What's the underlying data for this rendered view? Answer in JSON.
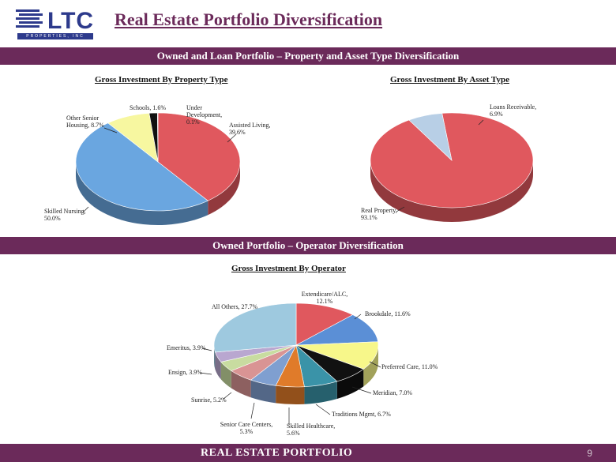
{
  "header": {
    "logo_text": "LTC",
    "logo_sub": "PROPERTIES, INC",
    "title": "Real Estate Portfolio Diversification"
  },
  "section1": {
    "band": "Owned and Loan Portfolio – Property and Asset Type Diversification"
  },
  "section2": {
    "band": "Owned Portfolio – Operator Diversification"
  },
  "footer": {
    "label": "REAL ESTATE PORTFOLIO",
    "page": "9"
  },
  "chart_data": [
    {
      "type": "pie",
      "title": "Gross Investment By Property Type",
      "slices": [
        {
          "label": "Assisted Living, 39.6%",
          "value": 39.6,
          "color": "#e0585e"
        },
        {
          "label": "Skilled Nursing, 50.0%",
          "value": 50.0,
          "color": "#6aa6e0"
        },
        {
          "label": "Other Senior Housing, 8.7%",
          "value": 8.7,
          "color": "#f7f7a0"
        },
        {
          "label": "Schools, 1.6%",
          "value": 1.6,
          "color": "#111111"
        },
        {
          "label": "Under Development, 0.1%",
          "value": 0.1,
          "color": "#888888"
        }
      ]
    },
    {
      "type": "pie",
      "title": "Gross Investment By Asset Type",
      "slices": [
        {
          "label": "Real Property, 93.1%",
          "value": 93.1,
          "color": "#e0585e"
        },
        {
          "label": "Loans Receivable, 6.9%",
          "value": 6.9,
          "color": "#b8cfe6"
        }
      ]
    },
    {
      "type": "pie",
      "title": "Gross Investment By Operator",
      "slices": [
        {
          "label": "Extendicare/ALC, 12.1%",
          "value": 12.1,
          "color": "#e0585e"
        },
        {
          "label": "Brookdale, 11.6%",
          "value": 11.6,
          "color": "#5b8fd6"
        },
        {
          "label": "Preferred Care, 11.0%",
          "value": 11.0,
          "color": "#f7f78a"
        },
        {
          "label": "Meridian, 7.0%",
          "value": 7.0,
          "color": "#111111"
        },
        {
          "label": "Traditions Mgmt, 6.7%",
          "value": 6.7,
          "color": "#3a93a8"
        },
        {
          "label": "Skilled Healthcare, 5.6%",
          "value": 5.6,
          "color": "#e07b2a"
        },
        {
          "label": "Senior Care Centers, 5.3%",
          "value": 5.3,
          "color": "#7f9fd0"
        },
        {
          "label": "Sunrise, 5.2%",
          "value": 5.2,
          "color": "#d99494"
        },
        {
          "label": "Ensign, 3.9%",
          "value": 3.9,
          "color": "#c8dca0"
        },
        {
          "label": "Emeritus, 3.9%",
          "value": 3.9,
          "color": "#b9a7d0"
        },
        {
          "label": "All Others, 27.7%",
          "value": 27.7,
          "color": "#9ec9df"
        }
      ]
    }
  ]
}
